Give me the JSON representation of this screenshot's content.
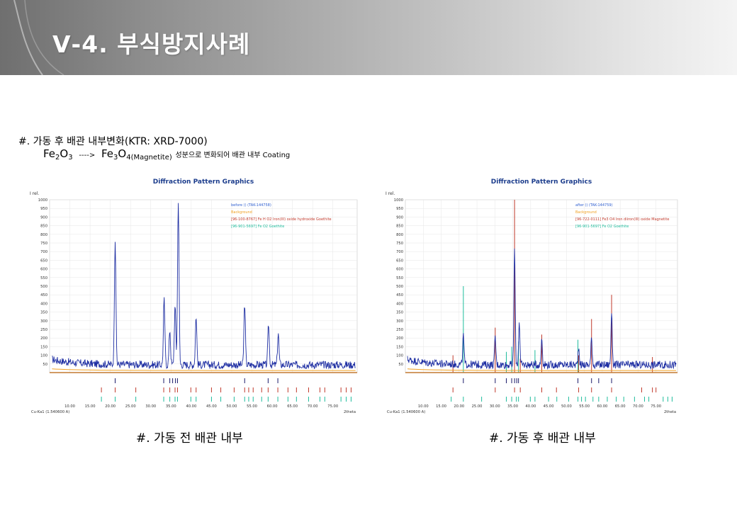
{
  "slide": {
    "title": "Ⅴ-4. 부식방지사례",
    "desc_line1": "#. 가동 후 배관 내부변화(KTR: XRD-7000)",
    "formula_from": {
      "el1": "Fe",
      "sub1": "2",
      "el2": "O",
      "sub2": "3"
    },
    "arrow": "---->",
    "formula_to": {
      "el1": "Fe",
      "sub1": "3",
      "el2": "O",
      "sub2": "4"
    },
    "formula_note": "(Magnetite)",
    "desc_tail": "성분으로 변화되어 배관 내부 Coating",
    "caption_left": "#. 가동 전 배관 내부",
    "caption_right": "#. 가동 후 배관 내부"
  },
  "colors": {
    "sample": "#1f2fa3",
    "background": "#f0a020",
    "ref_red": "#c0392b",
    "ref_cyan": "#1ebc9c",
    "baseline": "#c47a30",
    "title_blue": "#1b3c8c"
  },
  "chart_data": [
    {
      "type": "line",
      "title": "Diffraction Pattern Graphics",
      "ylabel": "I rel.",
      "xlabel": "2theta",
      "radiation": "Cu-Ka1 (1.540600 A)",
      "xlim": [
        5,
        81
      ],
      "ylim": [
        0,
        1000
      ],
      "x_ticks": [
        10,
        15,
        20,
        25,
        30,
        35,
        40,
        45,
        50,
        55,
        60,
        65,
        70,
        75
      ],
      "y_ticks": [
        50,
        100,
        150,
        200,
        250,
        300,
        350,
        400,
        450,
        500,
        550,
        600,
        650,
        700,
        750,
        800,
        850,
        900,
        950,
        1000
      ],
      "legend": [
        {
          "label": "before () (TAK-144758)",
          "color": "#2f5fd0"
        },
        {
          "label": "Background",
          "color": "#f0a020"
        },
        {
          "label": "[96-100-8767] Fe H O2 Iron(III) oxide hydroxide Goethite",
          "color": "#c0392b"
        },
        {
          "label": "[96-901-5697] Fe O2 Goethite",
          "color": "#1ebc9c"
        }
      ],
      "peaks": [
        {
          "x": 21.2,
          "y": 770
        },
        {
          "x": 33.3,
          "y": 420
        },
        {
          "x": 34.7,
          "y": 250
        },
        {
          "x": 36.0,
          "y": 380
        },
        {
          "x": 36.8,
          "y": 1000
        },
        {
          "x": 41.2,
          "y": 330
        },
        {
          "x": 53.2,
          "y": 400
        },
        {
          "x": 59.1,
          "y": 280
        },
        {
          "x": 61.5,
          "y": 230
        }
      ],
      "ref_ticks_dark": [
        21.2,
        33.2,
        34.7,
        35.4,
        36.1,
        36.6,
        53.2,
        59.0,
        61.4
      ],
      "ref_ticks_red": [
        17.8,
        21.2,
        26.3,
        33.2,
        34.7,
        36.0,
        36.6,
        39.9,
        41.2,
        45.0,
        47.3,
        50.6,
        53.2,
        54.2,
        55.3,
        57.4,
        59.0,
        61.4,
        63.9,
        66.0,
        69.0,
        71.8,
        73.0,
        77.0,
        78.3,
        79.5
      ],
      "ref_ticks_cyan": [
        17.8,
        21.2,
        26.3,
        33.2,
        34.7,
        36.0,
        36.6,
        39.9,
        41.2,
        45.0,
        47.3,
        50.6,
        53.2,
        54.2,
        55.3,
        57.4,
        59.0,
        61.4,
        63.9,
        66.0,
        69.0,
        71.8,
        73.0,
        77.0,
        78.3,
        79.5
      ]
    },
    {
      "type": "line",
      "title": "Diffraction Pattern Graphics",
      "ylabel": "I rel.",
      "xlabel": "2theta",
      "radiation": "Cu-Ka1 (1.540600 A)",
      "xlim": [
        5,
        81
      ],
      "ylim": [
        0,
        1000
      ],
      "x_ticks": [
        10,
        15,
        20,
        25,
        30,
        35,
        40,
        45,
        50,
        55,
        60,
        65,
        70,
        75
      ],
      "y_ticks": [
        50,
        100,
        150,
        200,
        250,
        300,
        350,
        400,
        450,
        500,
        550,
        600,
        650,
        700,
        750,
        800,
        850,
        900,
        950,
        1000
      ],
      "legend": [
        {
          "label": "after () (TAK-144759)",
          "color": "#2f5fd0"
        },
        {
          "label": "Background",
          "color": "#f0a020"
        },
        {
          "label": "[96-722-0111] Fe3 O4 Iron diiron(III) oxide Magnetite",
          "color": "#c0392b"
        },
        {
          "label": "[96-901-5697] Fe O2 Goethite",
          "color": "#1ebc9c"
        }
      ],
      "peaks": [
        {
          "x": 21.2,
          "y": 210
        },
        {
          "x": 30.1,
          "y": 210
        },
        {
          "x": 35.5,
          "y": 720
        },
        {
          "x": 36.8,
          "y": 300
        },
        {
          "x": 43.1,
          "y": 200
        },
        {
          "x": 53.4,
          "y": 150
        },
        {
          "x": 57.0,
          "y": 200
        },
        {
          "x": 62.6,
          "y": 350
        }
      ],
      "ref_peaks_red": [
        {
          "x": 18.3,
          "y": 100
        },
        {
          "x": 30.1,
          "y": 260
        },
        {
          "x": 35.5,
          "y": 1000
        },
        {
          "x": 37.1,
          "y": 80
        },
        {
          "x": 43.1,
          "y": 220
        },
        {
          "x": 53.4,
          "y": 100
        },
        {
          "x": 57.0,
          "y": 310
        },
        {
          "x": 62.6,
          "y": 450
        },
        {
          "x": 74.0,
          "y": 90
        }
      ],
      "ref_peaks_cyan": [
        {
          "x": 21.2,
          "y": 500
        },
        {
          "x": 33.2,
          "y": 120
        },
        {
          "x": 34.7,
          "y": 150
        },
        {
          "x": 36.6,
          "y": 180
        },
        {
          "x": 41.2,
          "y": 130
        },
        {
          "x": 53.2,
          "y": 190
        }
      ],
      "ref_ticks_dark": [
        21.2,
        30.1,
        33.2,
        34.7,
        35.5,
        36.1,
        36.6,
        53.2,
        57.0,
        59.0,
        62.6
      ],
      "ref_ticks_red": [
        18.3,
        30.1,
        35.5,
        37.1,
        43.1,
        47.2,
        53.4,
        57.0,
        62.6,
        71.0,
        74.0,
        75.0
      ],
      "ref_ticks_cyan": [
        17.8,
        21.2,
        26.3,
        33.2,
        34.7,
        36.0,
        36.6,
        39.9,
        41.2,
        45.0,
        47.3,
        50.6,
        53.2,
        54.2,
        55.3,
        57.4,
        59.0,
        61.4,
        63.9,
        66.0,
        69.0,
        71.8,
        73.0,
        77.0,
        78.3,
        79.5
      ]
    }
  ]
}
